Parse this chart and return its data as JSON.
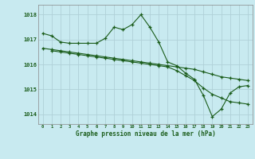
{
  "title": "Graphe pression niveau de la mer (hPa)",
  "bg_color": "#c8eaf0",
  "grid_color": "#b0d0d8",
  "line_color": "#1a5c1a",
  "xlim": [
    -0.5,
    23.5
  ],
  "ylim": [
    1013.6,
    1018.4
  ],
  "yticks": [
    1014,
    1015,
    1016,
    1017,
    1018
  ],
  "xticks": [
    0,
    1,
    2,
    3,
    4,
    5,
    6,
    7,
    8,
    9,
    10,
    11,
    12,
    13,
    14,
    15,
    16,
    17,
    18,
    19,
    20,
    21,
    22,
    23
  ],
  "series1_x": [
    0,
    1,
    2,
    3,
    4,
    5,
    6,
    7,
    8,
    9,
    10,
    11,
    12,
    13,
    14,
    15,
    16,
    17,
    18,
    19,
    20,
    21,
    22,
    23
  ],
  "series1_y": [
    1017.25,
    1017.15,
    1016.9,
    1016.85,
    1016.85,
    1016.85,
    1016.85,
    1017.05,
    1017.5,
    1017.4,
    1017.6,
    1018.0,
    1017.5,
    1016.9,
    1016.1,
    1015.95,
    1015.65,
    1015.4,
    1014.75,
    1013.9,
    1014.2,
    1014.85,
    1015.1,
    1015.15
  ],
  "series2_x": [
    0,
    1,
    2,
    3,
    4,
    5,
    6,
    7,
    8,
    9,
    10,
    11,
    12,
    13,
    14,
    15,
    16,
    17,
    18,
    19,
    20,
    21,
    22,
    23
  ],
  "series2_y": [
    1016.65,
    1016.6,
    1016.55,
    1016.5,
    1016.45,
    1016.4,
    1016.35,
    1016.3,
    1016.25,
    1016.2,
    1016.15,
    1016.1,
    1016.05,
    1016.0,
    1015.95,
    1015.9,
    1015.85,
    1015.8,
    1015.7,
    1015.6,
    1015.5,
    1015.45,
    1015.4,
    1015.35
  ],
  "series3_x": [
    1,
    2,
    3,
    4,
    5,
    6,
    7,
    8,
    9,
    10,
    11,
    12,
    13,
    14,
    15,
    16,
    17,
    18,
    19,
    20,
    21,
    22,
    23
  ],
  "series3_y": [
    1016.55,
    1016.5,
    1016.45,
    1016.4,
    1016.35,
    1016.3,
    1016.25,
    1016.2,
    1016.15,
    1016.1,
    1016.05,
    1016.0,
    1015.95,
    1015.9,
    1015.75,
    1015.55,
    1015.35,
    1015.05,
    1014.8,
    1014.65,
    1014.5,
    1014.45,
    1014.4
  ]
}
